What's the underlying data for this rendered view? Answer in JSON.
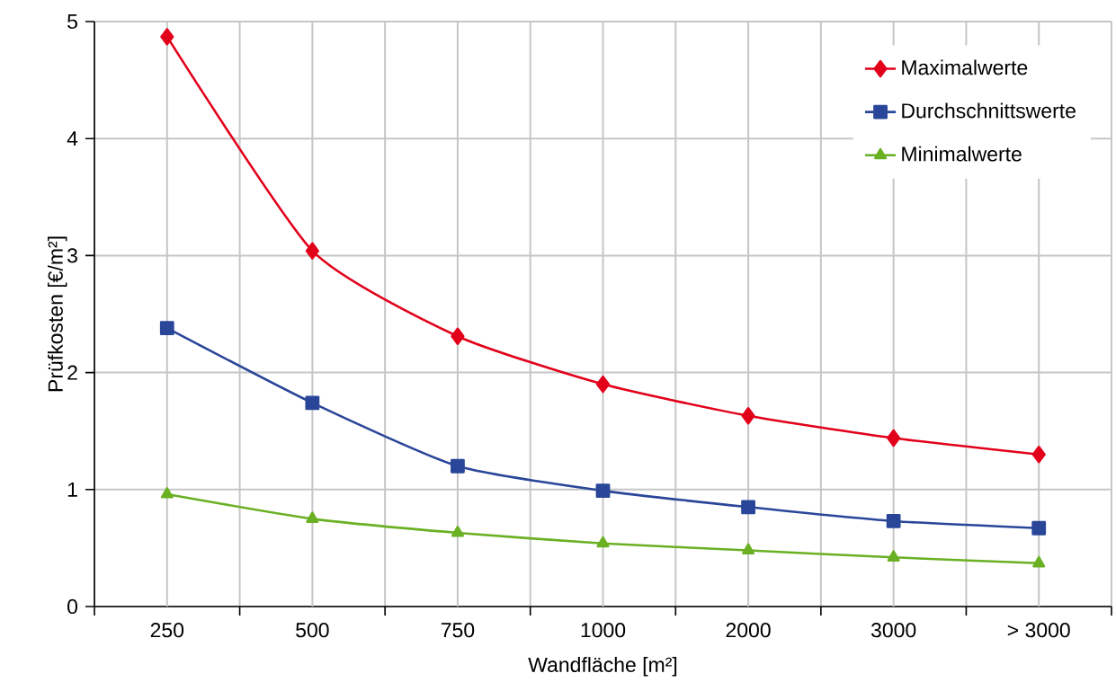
{
  "chart_data": {
    "type": "line",
    "xlabel": "Wandfläche [m²]",
    "ylabel": "Prüfkosten [€/m²]",
    "categories": [
      "250",
      "500",
      "750",
      "1000",
      "2000",
      "3000",
      "> 3000"
    ],
    "ylim": [
      0,
      5
    ],
    "yticks": [
      0,
      1,
      2,
      3,
      4,
      5
    ],
    "grid": true,
    "legend": "top right",
    "line_style": "solid",
    "series": [
      {
        "name": "Maximalwerte",
        "color": "#e2001a",
        "marker": "diamond",
        "values": [
          4.87,
          3.04,
          2.31,
          1.9,
          1.63,
          1.44,
          1.3
        ]
      },
      {
        "name": "Durchschnittswerte",
        "color": "#2a4699",
        "marker": "square",
        "values": [
          2.38,
          1.74,
          1.2,
          0.99,
          0.85,
          0.73,
          0.67
        ]
      },
      {
        "name": "Minimalwerte",
        "color": "#6ab023",
        "marker": "triangle",
        "values": [
          0.96,
          0.75,
          0.63,
          0.54,
          0.48,
          0.42,
          0.37
        ]
      }
    ]
  }
}
